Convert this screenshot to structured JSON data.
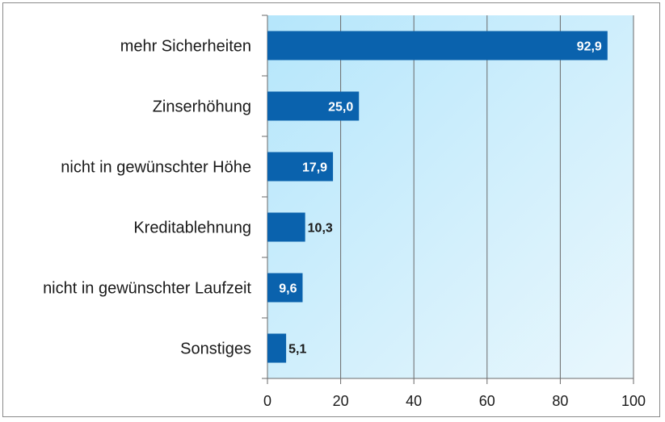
{
  "chart_data": {
    "type": "bar",
    "orientation": "horizontal",
    "categories": [
      "mehr Sicherheiten",
      "Zinserhöhung",
      "nicht in gewünschter Höhe",
      "Kreditablehnung",
      "nicht in gewünschter Laufzeit",
      "Sonstiges"
    ],
    "values": [
      92.9,
      25.0,
      17.9,
      10.3,
      9.6,
      5.1
    ],
    "value_labels": [
      "92,9",
      "25,0",
      "17,9",
      "10,3",
      "9,6",
      "5,1"
    ],
    "xlim": [
      0,
      100
    ],
    "xticks": [
      0,
      20,
      40,
      60,
      80,
      100
    ],
    "title": "",
    "xlabel": "",
    "ylabel": "",
    "grid": true,
    "bar_color": "#0a62ad",
    "label_color_inside": "#ffffff",
    "label_color_outside": "#1a1a1a",
    "plot_gradient": [
      "#b5e6fb",
      "#e9f7fd"
    ],
    "grid_color": "#6a6a6a"
  }
}
